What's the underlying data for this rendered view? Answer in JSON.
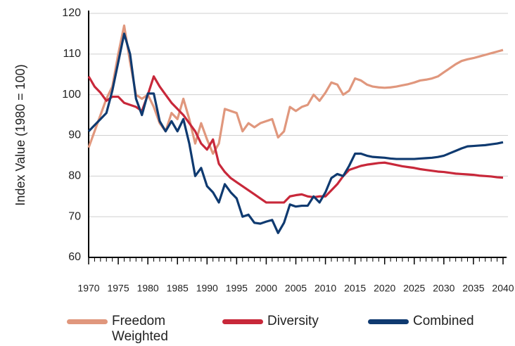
{
  "chart_data": {
    "type": "line",
    "y_label": "Index Value (1980 = 100)",
    "x": [
      1970,
      1971,
      1972,
      1973,
      1974,
      1975,
      1976,
      1977,
      1978,
      1979,
      1980,
      1981,
      1982,
      1983,
      1984,
      1985,
      1986,
      1987,
      1988,
      1989,
      1990,
      1991,
      1992,
      1993,
      1994,
      1995,
      1996,
      1997,
      1998,
      1999,
      2000,
      2001,
      2002,
      2003,
      2004,
      2005,
      2006,
      2007,
      2008,
      2009,
      2010,
      2011,
      2012,
      2013,
      2014,
      2015,
      2016,
      2017,
      2018,
      2019,
      2020,
      2021,
      2022,
      2023,
      2024,
      2025,
      2026,
      2027,
      2028,
      2029,
      2030,
      2031,
      2032,
      2033,
      2034,
      2035,
      2036,
      2037,
      2038,
      2039,
      2040
    ],
    "series": [
      {
        "name": "Freedom Weighted",
        "color": "#e0977d",
        "values": [
          87,
          91,
          95,
          99,
          102,
          110,
          117,
          108,
          100,
          99,
          100,
          97,
          93,
          91,
          95.5,
          94,
          99,
          94,
          88,
          93,
          89,
          85.5,
          88,
          96.5,
          96,
          95.5,
          91,
          93,
          92,
          93,
          93.5,
          94,
          89.5,
          91,
          97,
          96,
          97,
          97.5,
          100,
          98.5,
          100.5,
          103,
          102.5,
          100,
          101,
          104,
          103.5,
          102.5,
          102,
          101.8,
          101.7,
          101.8,
          102,
          102.3,
          102.6,
          103,
          103.5,
          103.7,
          104,
          104.5,
          105.5,
          106.5,
          107.5,
          108.3,
          108.7,
          109,
          109.4,
          109.8,
          110.2,
          110.6,
          111
        ]
      },
      {
        "name": "Diversity",
        "color": "#c8283a",
        "values": [
          104.5,
          102,
          100.5,
          98.5,
          99.5,
          99.5,
          98,
          97.5,
          97,
          96,
          100,
          104.5,
          102,
          100,
          98,
          96.5,
          95,
          93,
          91,
          88,
          86.5,
          89,
          83,
          81,
          79.5,
          78.5,
          77.5,
          76.5,
          75.5,
          74.5,
          73.5,
          73.5,
          73.5,
          73.5,
          75,
          75.3,
          75.5,
          75,
          74.8,
          75,
          75,
          76.5,
          78,
          80,
          81.5,
          82,
          82.5,
          82.8,
          83,
          83.2,
          83.3,
          83,
          82.7,
          82.4,
          82.2,
          82,
          81.7,
          81.5,
          81.3,
          81.1,
          81,
          80.8,
          80.6,
          80.5,
          80.4,
          80.3,
          80.1,
          80,
          79.9,
          79.7,
          79.6
        ]
      },
      {
        "name": "Combined",
        "color": "#0f3a70",
        "values": [
          91,
          92.5,
          94,
          95.5,
          101,
          108,
          115,
          110,
          99,
          95,
          100.3,
          100.3,
          93.5,
          91,
          93.5,
          91,
          94,
          88,
          80,
          82,
          77.5,
          76,
          73.5,
          78,
          76,
          74.5,
          70,
          70.5,
          68.5,
          68.3,
          68.8,
          69.2,
          66,
          68.5,
          73,
          72.5,
          72.7,
          72.7,
          75,
          73.5,
          76,
          79.5,
          80.5,
          80,
          82.5,
          85.5,
          85.5,
          85,
          84.7,
          84.6,
          84.5,
          84.3,
          84.2,
          84.2,
          84.2,
          84.2,
          84.3,
          84.4,
          84.5,
          84.7,
          85,
          85.6,
          86.2,
          86.8,
          87.3,
          87.4,
          87.5,
          87.6,
          87.8,
          88,
          88.3
        ]
      }
    ],
    "xlim": [
      1970,
      2040
    ],
    "xticks": [
      1970,
      1975,
      1980,
      1985,
      1990,
      1995,
      2000,
      2005,
      2010,
      2015,
      2020,
      2025,
      2030,
      2035,
      2040
    ],
    "ylim": [
      60,
      120
    ],
    "yticks": [
      60,
      70,
      80,
      90,
      100,
      110,
      120
    ],
    "grid": true
  }
}
